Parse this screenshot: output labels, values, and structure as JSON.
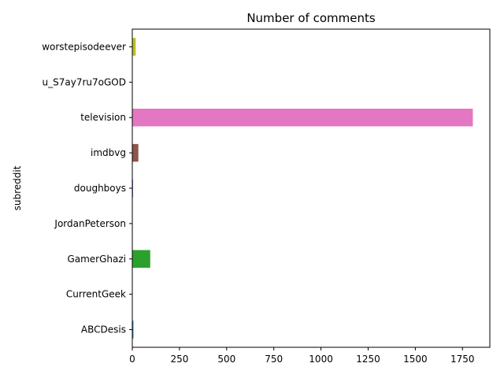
{
  "chart_data": {
    "type": "bar",
    "orientation": "horizontal",
    "title": "Number of comments",
    "xlabel": "",
    "ylabel": "subreddit",
    "categories": [
      "ABCDesis",
      "CurrentGeek",
      "GamerGhazi",
      "JordanPeterson",
      "doughboys",
      "imdbvg",
      "television",
      "u_S7ay7ru7oGOD",
      "worstepisodeever"
    ],
    "values": [
      6,
      1,
      95,
      1,
      4,
      32,
      1805,
      1,
      18
    ],
    "colors": [
      "#1f77b4",
      "#ff7f0e",
      "#2ca02c",
      "#d62728",
      "#9467bd",
      "#8c564b",
      "#e377c2",
      "#7f7f7f",
      "#bcbd22"
    ],
    "xlim": [
      0,
      1895
    ],
    "xticks": [
      0,
      250,
      500,
      750,
      1000,
      1250,
      1500,
      1750
    ],
    "grid": false,
    "legend": "none"
  }
}
